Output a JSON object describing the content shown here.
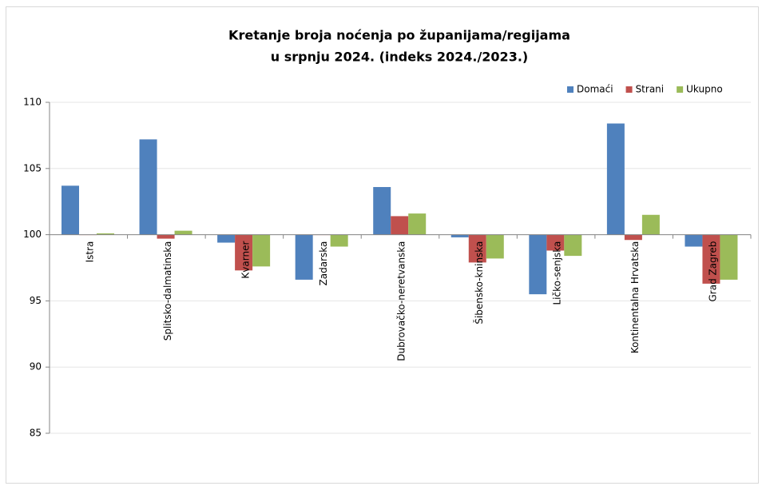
{
  "chart_data": {
    "type": "bar",
    "title": "Kretanje broja noćenja po županijama/regijama",
    "subtitle": "u srpnju 2024.  (indeks 2024./2023.)",
    "categories": [
      "Istra",
      "Splitsko-dalmatinska",
      "Kvarner",
      "Zadarska",
      "Dubrovačko-neretvanska",
      "Šibensko-kninska",
      "Ličko-senjska",
      "Kontinentalna Hrvatska",
      "Grad Zagreb"
    ],
    "series": [
      {
        "name": "Domaći",
        "color": "#4f81bd",
        "values": [
          103.7,
          107.2,
          99.4,
          96.6,
          103.6,
          99.8,
          95.5,
          108.4,
          99.1
        ]
      },
      {
        "name": "Strani",
        "color": "#c0504d",
        "values": [
          100.0,
          99.7,
          97.3,
          100.0,
          101.4,
          97.9,
          98.8,
          99.6,
          96.3
        ]
      },
      {
        "name": "Ukupno",
        "color": "#9bbb59",
        "values": [
          100.1,
          100.3,
          97.6,
          99.1,
          101.6,
          98.2,
          98.4,
          101.5,
          96.6
        ]
      }
    ],
    "ylim": [
      85,
      110
    ],
    "yticks": [
      85,
      90,
      95,
      100,
      105,
      110
    ],
    "grid": true,
    "x_axis_crosses": 100,
    "legend": "top-right"
  }
}
